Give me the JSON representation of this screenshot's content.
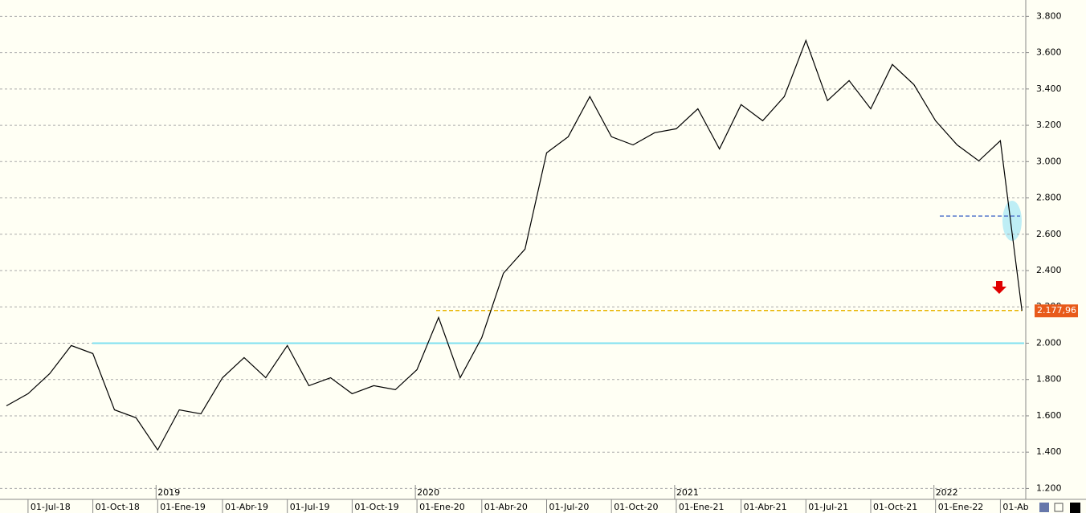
{
  "chart_data": {
    "type": "line",
    "categories": [
      null,
      "01-Jul-18",
      null,
      null,
      "01-Oct-18",
      null,
      null,
      "01-Ene-19",
      null,
      null,
      "01-Abr-19",
      null,
      null,
      "01-Jul-19",
      null,
      null,
      "01-Oct-19",
      null,
      null,
      "01-Ene-20",
      null,
      null,
      "01-Abr-20",
      null,
      null,
      "01-Jul-20",
      null,
      null,
      "01-Oct-20",
      null,
      null,
      "01-Ene-21",
      null,
      null,
      "01-Abr-21",
      null,
      null,
      "01-Jul-21",
      null,
      null,
      "01-Oct-21",
      null,
      null,
      "01-Ene-22",
      null,
      null,
      "01-Ab",
      null
    ],
    "years": [
      "2019",
      "2020",
      "2021",
      "2022"
    ],
    "values": [
      1655,
      1722,
      1832,
      1987,
      1943,
      1633,
      1589,
      1412,
      1633,
      1611,
      1810,
      1921,
      1810,
      1987,
      1766,
      1810,
      1722,
      1766,
      1744,
      1854,
      2142,
      1810,
      2031,
      2385,
      2518,
      3048,
      3137,
      3358,
      3137,
      3092,
      3159,
      3181,
      3291,
      3070,
      3314,
      3225,
      3358,
      3667,
      3336,
      3446,
      3291,
      3535,
      3424,
      3225,
      3092,
      3004,
      3115,
      2177.96
    ],
    "color": "#000000",
    "last_value": {
      "value": 2177.96,
      "label": "2.177,96"
    },
    "reference_lines": [
      {
        "value": 2180,
        "color": "#e8b400",
        "dashed": true
      },
      {
        "value": 2000,
        "color": "#7fe0f0",
        "dashed": false
      },
      {
        "value": 2700,
        "color": "#5577cc",
        "dashed": true
      }
    ],
    "ylim": [
      1140,
      3890
    ],
    "yticks": [
      {
        "value": 1200,
        "label": "1.200"
      },
      {
        "value": 1400,
        "label": "1.400"
      },
      {
        "value": 1600,
        "label": "1.600"
      },
      {
        "value": 1800,
        "label": "1.800"
      },
      {
        "value": 2000,
        "label": "2.000"
      },
      {
        "value": 2200,
        "label": "2.200"
      },
      {
        "value": 2400,
        "label": "2.400"
      },
      {
        "value": 2600,
        "label": "2.600"
      },
      {
        "value": 2800,
        "label": "2.800"
      },
      {
        "value": 3000,
        "label": "3.000"
      },
      {
        "value": 3200,
        "label": "3.200"
      },
      {
        "value": 3400,
        "label": "3.400"
      },
      {
        "value": 3600,
        "label": "3.600"
      },
      {
        "value": 3800,
        "label": "3.800"
      }
    ],
    "grid": true
  }
}
